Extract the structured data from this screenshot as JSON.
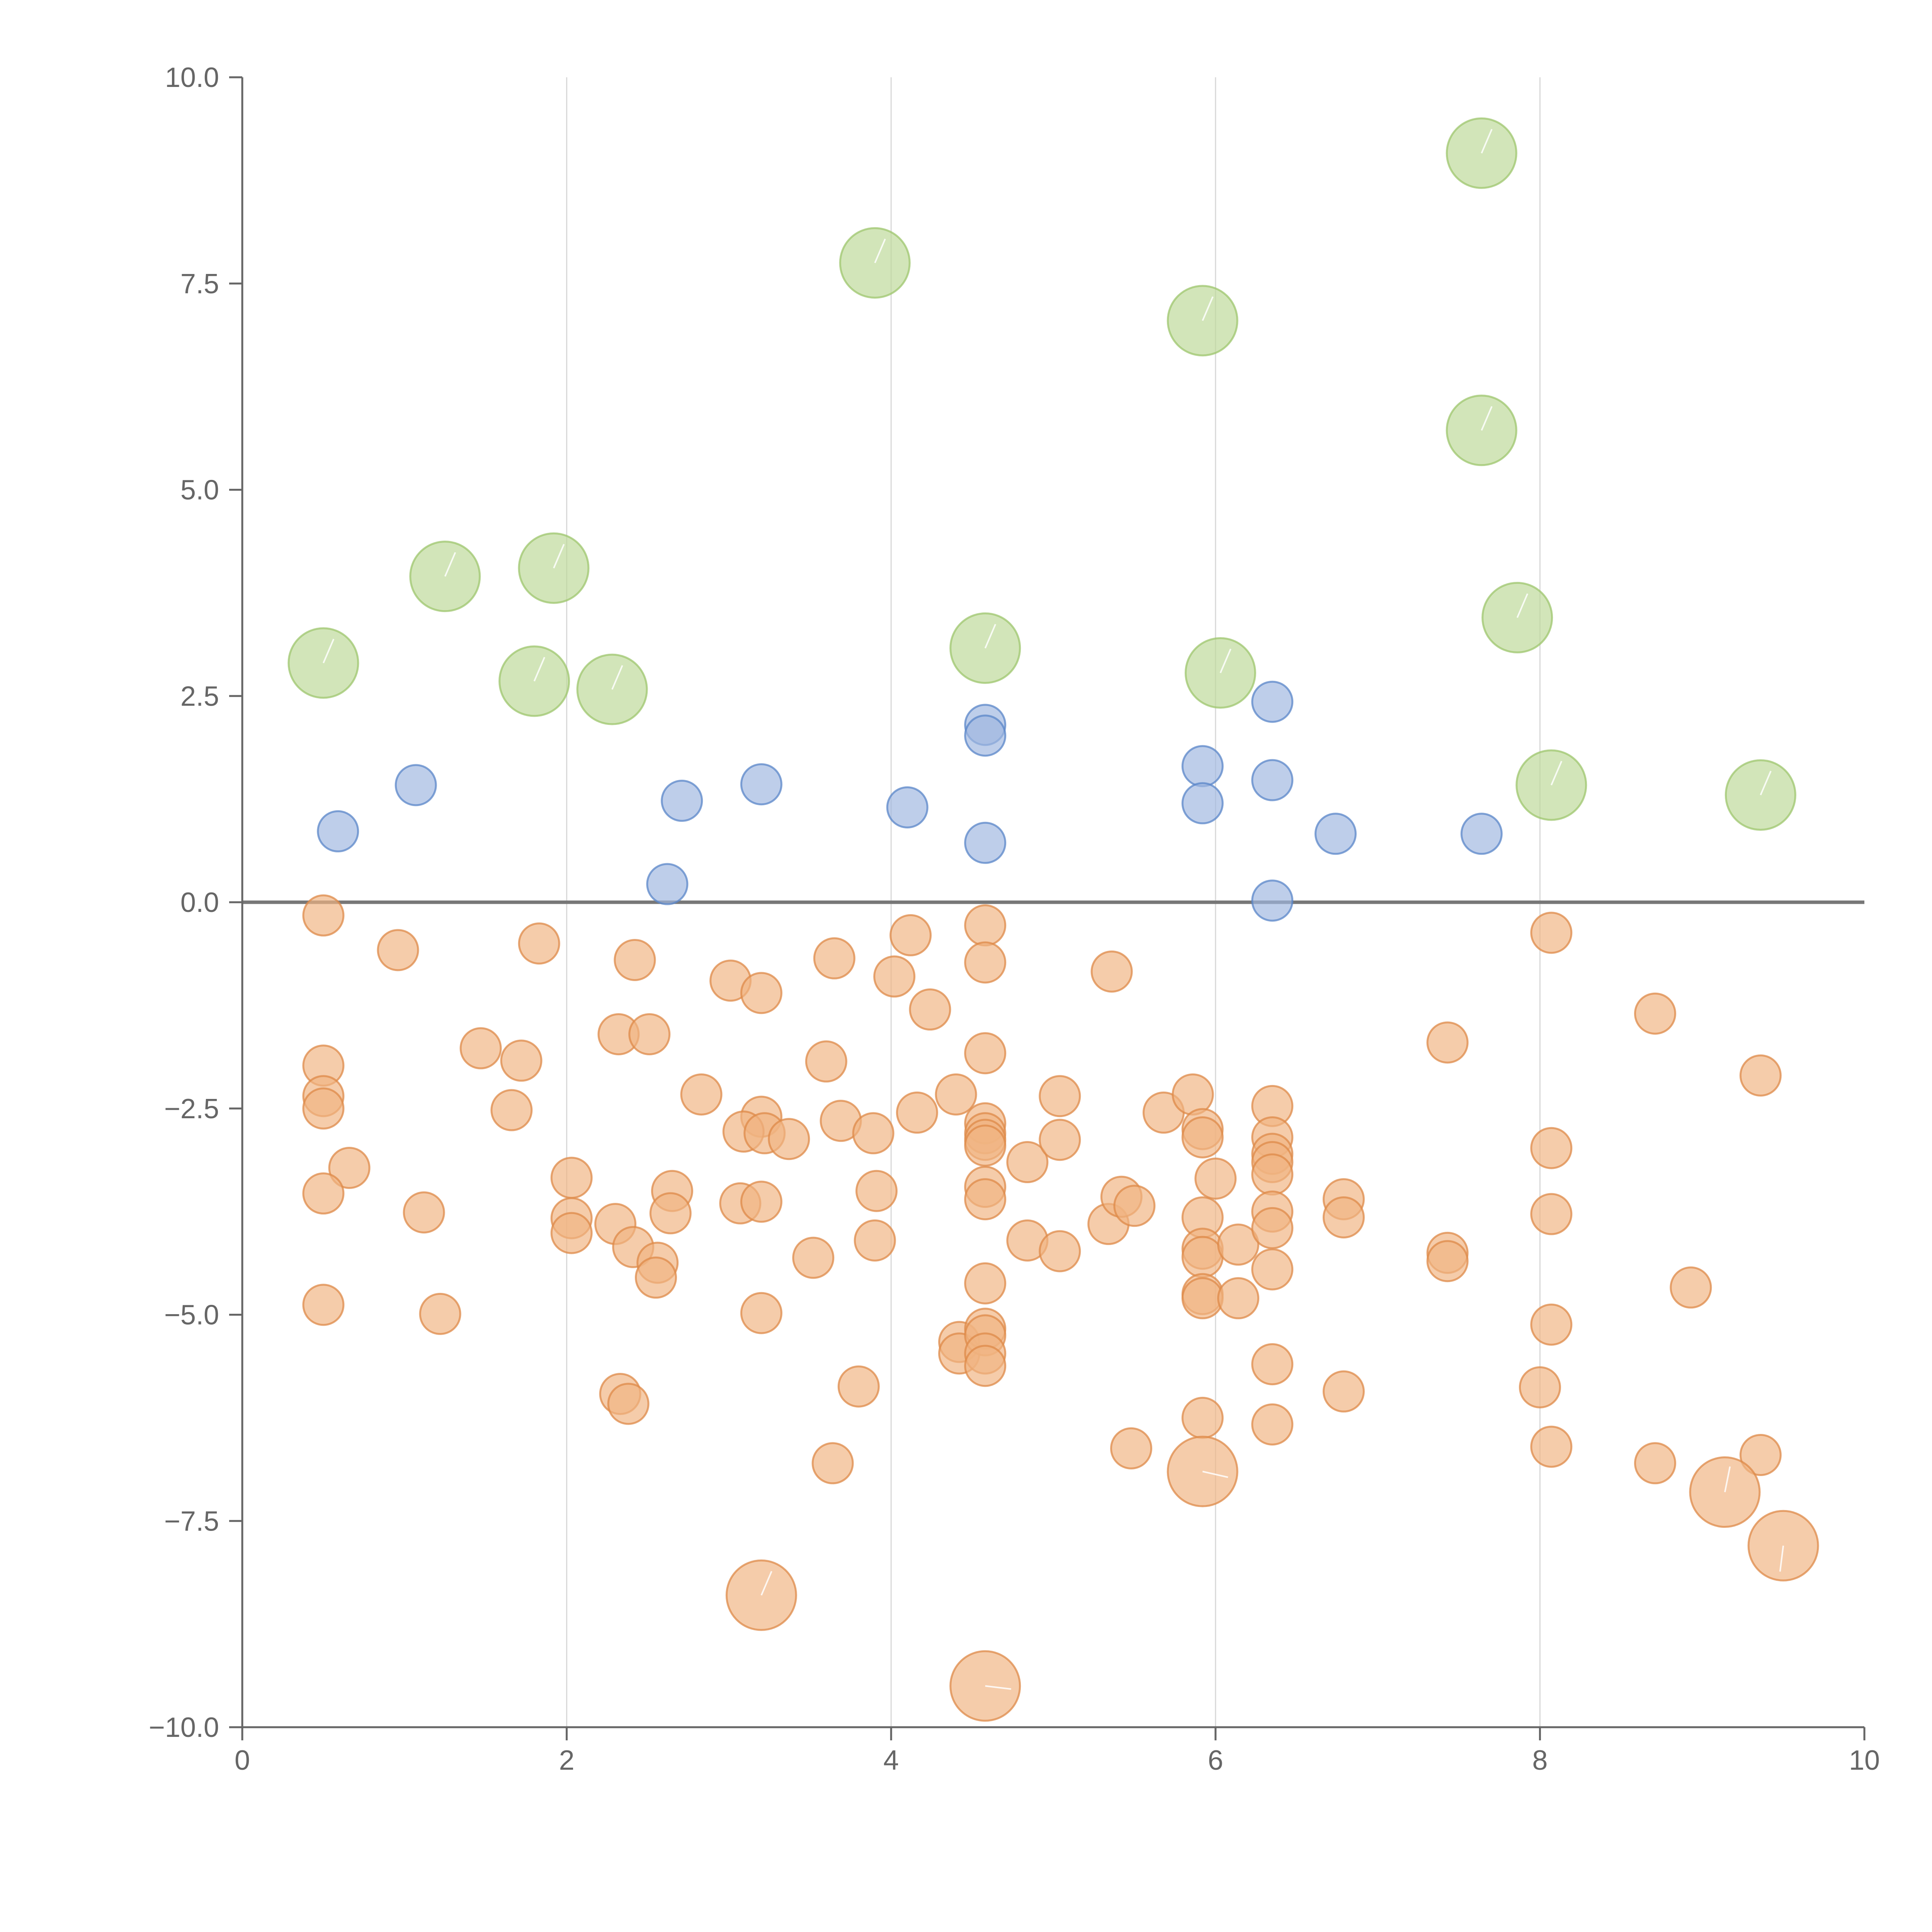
{
  "colors": {
    "low": "#f0b482",
    "low_stroke": "#de8a48",
    "mid": "#9fb7e0",
    "mid_stroke": "#5a85c8",
    "high": "#bcd998",
    "high_stroke": "#9dc56e",
    "axis": "#666666",
    "grid": "#d8d8d8",
    "zero": "#777777"
  },
  "chart_data": {
    "type": "scatter",
    "title": "",
    "xlabel": "",
    "ylabel": "",
    "xlim": [
      0,
      10
    ],
    "ylim": [
      -10,
      10
    ],
    "grid": "vertical",
    "xticks": [
      "0",
      "2",
      "4",
      "6",
      "8",
      "10"
    ],
    "xtick_values": [
      0,
      2,
      4,
      6,
      8,
      10
    ],
    "yticks": [
      "10.0",
      "7.5",
      "5.0",
      "2.5",
      "0.0",
      "−2.5",
      "−5.0",
      "−7.5",
      "−10.0"
    ],
    "ytick_values": [
      10,
      7.5,
      5,
      2.5,
      0,
      -2.5,
      -5,
      -7.5,
      -10
    ],
    "series": [
      {
        "name": "high",
        "color_key": "high",
        "points": [
          {
            "x": 0.5,
            "y": 2.9,
            "s": 2
          },
          {
            "x": 1.25,
            "y": 3.95,
            "s": 2
          },
          {
            "x": 1.92,
            "y": 4.05,
            "s": 2
          },
          {
            "x": 1.8,
            "y": 2.68,
            "s": 2
          },
          {
            "x": 2.28,
            "y": 2.58,
            "s": 2
          },
          {
            "x": 3.9,
            "y": 7.75,
            "s": 2
          },
          {
            "x": 4.58,
            "y": 3.08,
            "s": 2
          },
          {
            "x": 5.92,
            "y": 7.05,
            "s": 2
          },
          {
            "x": 6.03,
            "y": 2.78,
            "s": 2
          },
          {
            "x": 7.64,
            "y": 9.08,
            "s": 2
          },
          {
            "x": 7.64,
            "y": 5.72,
            "s": 2
          },
          {
            "x": 7.86,
            "y": 3.45,
            "s": 2
          },
          {
            "x": 8.07,
            "y": 1.42,
            "s": 2
          },
          {
            "x": 9.36,
            "y": 1.3,
            "s": 2
          }
        ]
      },
      {
        "name": "mid",
        "color_key": "mid",
        "points": [
          {
            "x": 0.59,
            "y": 0.86,
            "s": 1
          },
          {
            "x": 1.07,
            "y": 1.42,
            "s": 1
          },
          {
            "x": 2.62,
            "y": 0.22,
            "s": 1
          },
          {
            "x": 2.71,
            "y": 1.23,
            "s": 1
          },
          {
            "x": 3.2,
            "y": 1.43,
            "s": 1
          },
          {
            "x": 4.1,
            "y": 1.15,
            "s": 1
          },
          {
            "x": 4.58,
            "y": 2.15,
            "s": 1
          },
          {
            "x": 4.58,
            "y": 2.02,
            "s": 1
          },
          {
            "x": 4.58,
            "y": 0.72,
            "s": 1
          },
          {
            "x": 5.92,
            "y": 1.65,
            "s": 1
          },
          {
            "x": 5.92,
            "y": 1.2,
            "s": 1
          },
          {
            "x": 6.35,
            "y": 2.43,
            "s": 1
          },
          {
            "x": 6.35,
            "y": 1.48,
            "s": 1
          },
          {
            "x": 6.35,
            "y": 0.02,
            "s": 1
          },
          {
            "x": 6.74,
            "y": 0.83,
            "s": 1
          },
          {
            "x": 7.64,
            "y": 0.83,
            "s": 1
          }
        ]
      },
      {
        "name": "low",
        "color_key": "low",
        "points": [
          {
            "x": 0.5,
            "y": -0.16,
            "s": 1
          },
          {
            "x": 0.96,
            "y": -0.58,
            "s": 1
          },
          {
            "x": 1.83,
            "y": -0.5,
            "s": 1
          },
          {
            "x": 0.5,
            "y": -1.98,
            "s": 1
          },
          {
            "x": 0.5,
            "y": -2.35,
            "s": 1
          },
          {
            "x": 0.5,
            "y": -2.5,
            "s": 1
          },
          {
            "x": 0.66,
            "y": -3.22,
            "s": 1
          },
          {
            "x": 0.5,
            "y": -3.53,
            "s": 1
          },
          {
            "x": 0.5,
            "y": -4.88,
            "s": 1
          },
          {
            "x": 1.12,
            "y": -3.76,
            "s": 1
          },
          {
            "x": 1.22,
            "y": -4.99,
            "s": 1
          },
          {
            "x": 1.47,
            "y": -1.77,
            "s": 1
          },
          {
            "x": 1.72,
            "y": -1.92,
            "s": 1
          },
          {
            "x": 1.66,
            "y": -2.52,
            "s": 1
          },
          {
            "x": 2.03,
            "y": -3.34,
            "s": 1
          },
          {
            "x": 2.03,
            "y": -3.83,
            "s": 1
          },
          {
            "x": 2.03,
            "y": -4.01,
            "s": 1
          },
          {
            "x": 2.3,
            "y": -3.9,
            "s": 1
          },
          {
            "x": 2.32,
            "y": -1.6,
            "s": 1
          },
          {
            "x": 2.41,
            "y": -4.18,
            "s": 1
          },
          {
            "x": 2.42,
            "y": -0.7,
            "s": 1
          },
          {
            "x": 2.51,
            "y": -1.6,
            "s": 1
          },
          {
            "x": 2.56,
            "y": -4.37,
            "s": 1
          },
          {
            "x": 2.55,
            "y": -4.55,
            "s": 1
          },
          {
            "x": 2.65,
            "y": -3.5,
            "s": 1
          },
          {
            "x": 2.64,
            "y": -3.77,
            "s": 1
          },
          {
            "x": 2.83,
            "y": -2.33,
            "s": 1
          },
          {
            "x": 2.33,
            "y": -5.96,
            "s": 1
          },
          {
            "x": 2.38,
            "y": -6.08,
            "s": 1
          },
          {
            "x": 3.01,
            "y": -0.95,
            "s": 1
          },
          {
            "x": 3.2,
            "y": -1.1,
            "s": 1
          },
          {
            "x": 3.2,
            "y": -2.6,
            "s": 1
          },
          {
            "x": 3.09,
            "y": -2.78,
            "s": 1
          },
          {
            "x": 3.22,
            "y": -2.8,
            "s": 1
          },
          {
            "x": 3.37,
            "y": -2.87,
            "s": 1
          },
          {
            "x": 3.07,
            "y": -3.65,
            "s": 1
          },
          {
            "x": 3.2,
            "y": -3.63,
            "s": 1
          },
          {
            "x": 3.2,
            "y": -4.98,
            "s": 1
          },
          {
            "x": 3.52,
            "y": -4.31,
            "s": 1
          },
          {
            "x": 3.6,
            "y": -1.93,
            "s": 1
          },
          {
            "x": 3.65,
            "y": -0.68,
            "s": 1
          },
          {
            "x": 3.69,
            "y": -2.65,
            "s": 1
          },
          {
            "x": 3.89,
            "y": -2.8,
            "s": 1
          },
          {
            "x": 3.91,
            "y": -3.5,
            "s": 1
          },
          {
            "x": 3.9,
            "y": -4.1,
            "s": 1
          },
          {
            "x": 3.8,
            "y": -5.87,
            "s": 1
          },
          {
            "x": 3.64,
            "y": -6.8,
            "s": 1
          },
          {
            "x": 4.02,
            "y": -0.9,
            "s": 1
          },
          {
            "x": 4.12,
            "y": -0.4,
            "s": 1
          },
          {
            "x": 4.24,
            "y": -1.3,
            "s": 1
          },
          {
            "x": 4.16,
            "y": -2.55,
            "s": 1
          },
          {
            "x": 4.4,
            "y": -2.33,
            "s": 1
          },
          {
            "x": 4.42,
            "y": -5.33,
            "s": 1
          },
          {
            "x": 4.42,
            "y": -5.47,
            "s": 1
          },
          {
            "x": 4.58,
            "y": -0.28,
            "s": 1
          },
          {
            "x": 4.58,
            "y": -0.73,
            "s": 1
          },
          {
            "x": 4.58,
            "y": -1.83,
            "s": 1
          },
          {
            "x": 4.58,
            "y": -2.68,
            "s": 1
          },
          {
            "x": 4.58,
            "y": -2.8,
            "s": 1
          },
          {
            "x": 4.58,
            "y": -2.88,
            "s": 1
          },
          {
            "x": 4.58,
            "y": -2.95,
            "s": 1
          },
          {
            "x": 4.58,
            "y": -3.45,
            "s": 1
          },
          {
            "x": 4.58,
            "y": -3.6,
            "s": 1
          },
          {
            "x": 4.58,
            "y": -4.62,
            "s": 1
          },
          {
            "x": 4.58,
            "y": -5.17,
            "s": 1
          },
          {
            "x": 4.58,
            "y": -5.25,
            "s": 1
          },
          {
            "x": 4.58,
            "y": -5.47,
            "s": 1
          },
          {
            "x": 4.58,
            "y": -5.62,
            "s": 1
          },
          {
            "x": 4.84,
            "y": -3.15,
            "s": 1
          },
          {
            "x": 4.84,
            "y": -4.1,
            "s": 1
          },
          {
            "x": 5.04,
            "y": -2.35,
            "s": 1
          },
          {
            "x": 5.04,
            "y": -2.88,
            "s": 1
          },
          {
            "x": 5.04,
            "y": -4.23,
            "s": 1
          },
          {
            "x": 5.36,
            "y": -0.84,
            "s": 1
          },
          {
            "x": 5.34,
            "y": -3.9,
            "s": 1
          },
          {
            "x": 5.42,
            "y": -3.57,
            "s": 1
          },
          {
            "x": 5.5,
            "y": -3.68,
            "s": 1
          },
          {
            "x": 5.48,
            "y": -6.62,
            "s": 1
          },
          {
            "x": 5.68,
            "y": -2.55,
            "s": 1
          },
          {
            "x": 5.86,
            "y": -2.33,
            "s": 1
          },
          {
            "x": 5.92,
            "y": -2.75,
            "s": 1
          },
          {
            "x": 5.92,
            "y": -2.85,
            "s": 1
          },
          {
            "x": 5.92,
            "y": -3.82,
            "s": 1
          },
          {
            "x": 5.92,
            "y": -4.2,
            "s": 1
          },
          {
            "x": 5.92,
            "y": -4.3,
            "s": 1
          },
          {
            "x": 5.92,
            "y": -4.75,
            "s": 1
          },
          {
            "x": 5.92,
            "y": -4.8,
            "s": 1
          },
          {
            "x": 5.92,
            "y": -6.25,
            "s": 1
          },
          {
            "x": 6.0,
            "y": -3.35,
            "s": 1
          },
          {
            "x": 6.14,
            "y": -4.15,
            "s": 1
          },
          {
            "x": 6.14,
            "y": -4.8,
            "s": 1
          },
          {
            "x": 6.35,
            "y": -2.47,
            "s": 1
          },
          {
            "x": 6.35,
            "y": -2.85,
            "s": 1
          },
          {
            "x": 6.35,
            "y": -3.05,
            "s": 1
          },
          {
            "x": 6.35,
            "y": -3.15,
            "s": 1
          },
          {
            "x": 6.35,
            "y": -3.3,
            "s": 1
          },
          {
            "x": 6.35,
            "y": -3.75,
            "s": 1
          },
          {
            "x": 6.35,
            "y": -3.95,
            "s": 1
          },
          {
            "x": 6.35,
            "y": -4.45,
            "s": 1
          },
          {
            "x": 6.35,
            "y": -5.6,
            "s": 1
          },
          {
            "x": 6.35,
            "y": -6.33,
            "s": 1
          },
          {
            "x": 6.79,
            "y": -3.6,
            "s": 1
          },
          {
            "x": 6.79,
            "y": -3.82,
            "s": 1
          },
          {
            "x": 6.79,
            "y": -5.93,
            "s": 1
          },
          {
            "x": 7.43,
            "y": -1.7,
            "s": 1
          },
          {
            "x": 7.43,
            "y": -4.25,
            "s": 1
          },
          {
            "x": 7.43,
            "y": -4.35,
            "s": 1
          },
          {
            "x": 8.07,
            "y": -0.37,
            "s": 1
          },
          {
            "x": 8.07,
            "y": -2.98,
            "s": 1
          },
          {
            "x": 8.07,
            "y": -3.78,
            "s": 1
          },
          {
            "x": 8.07,
            "y": -5.12,
            "s": 1
          },
          {
            "x": 8.0,
            "y": -5.88,
            "s": 1
          },
          {
            "x": 8.07,
            "y": -6.6,
            "s": 1
          },
          {
            "x": 8.71,
            "y": -1.35,
            "s": 1
          },
          {
            "x": 8.71,
            "y": -6.8,
            "s": 1
          },
          {
            "x": 8.93,
            "y": -4.67,
            "s": 1
          },
          {
            "x": 9.36,
            "y": -2.1,
            "s": 1
          },
          {
            "x": 9.36,
            "y": -6.7,
            "s": 1
          },
          {
            "x": 3.2,
            "y": -8.4,
            "s": 2
          },
          {
            "x": 4.58,
            "y": -9.5,
            "s": 2,
            "tail": [
              0.25,
              -0.03
            ]
          },
          {
            "x": 5.92,
            "y": -6.9,
            "s": 2,
            "tail": [
              0.22,
              -0.05
            ]
          },
          {
            "x": 9.14,
            "y": -7.15,
            "s": 2,
            "tail": [
              0.07,
              0.35
            ]
          },
          {
            "x": 9.5,
            "y": -7.8,
            "s": 2,
            "tail": [
              -0.05,
              -0.4
            ]
          }
        ]
      }
    ]
  }
}
